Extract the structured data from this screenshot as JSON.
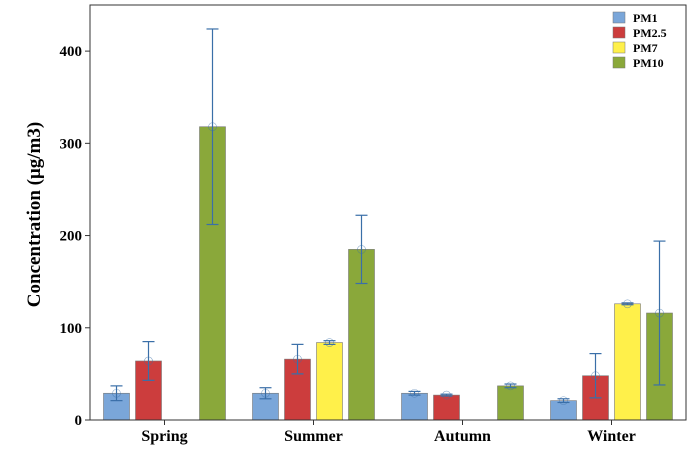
{
  "chart_data": {
    "type": "bar",
    "categories": [
      "Spring",
      "Summer",
      "Autumn",
      "Winter"
    ],
    "ylabel": "Concentration (μg/m3)",
    "xlabel": "",
    "ylim": [
      0,
      450
    ],
    "yticks": [
      0,
      100,
      200,
      300,
      400
    ],
    "grid": false,
    "legend_position": "top-right",
    "series": [
      {
        "name": "PM1",
        "color": "#7aa6d9",
        "values": [
          29,
          29,
          29,
          21
        ],
        "errors": [
          8,
          6,
          2,
          2
        ]
      },
      {
        "name": "PM2.5",
        "color": "#cc3d3d",
        "values": [
          64,
          66,
          27,
          48
        ],
        "errors": [
          21,
          16,
          1,
          24
        ]
      },
      {
        "name": "PM7",
        "color": "#fff04a",
        "values": [
          null,
          84,
          null,
          126
        ],
        "errors": [
          null,
          2,
          null,
          1
        ]
      },
      {
        "name": "PM10",
        "color": "#8aa83a",
        "values": [
          318,
          185,
          37,
          116
        ],
        "errors": [
          106,
          37,
          2,
          78
        ]
      }
    ]
  }
}
